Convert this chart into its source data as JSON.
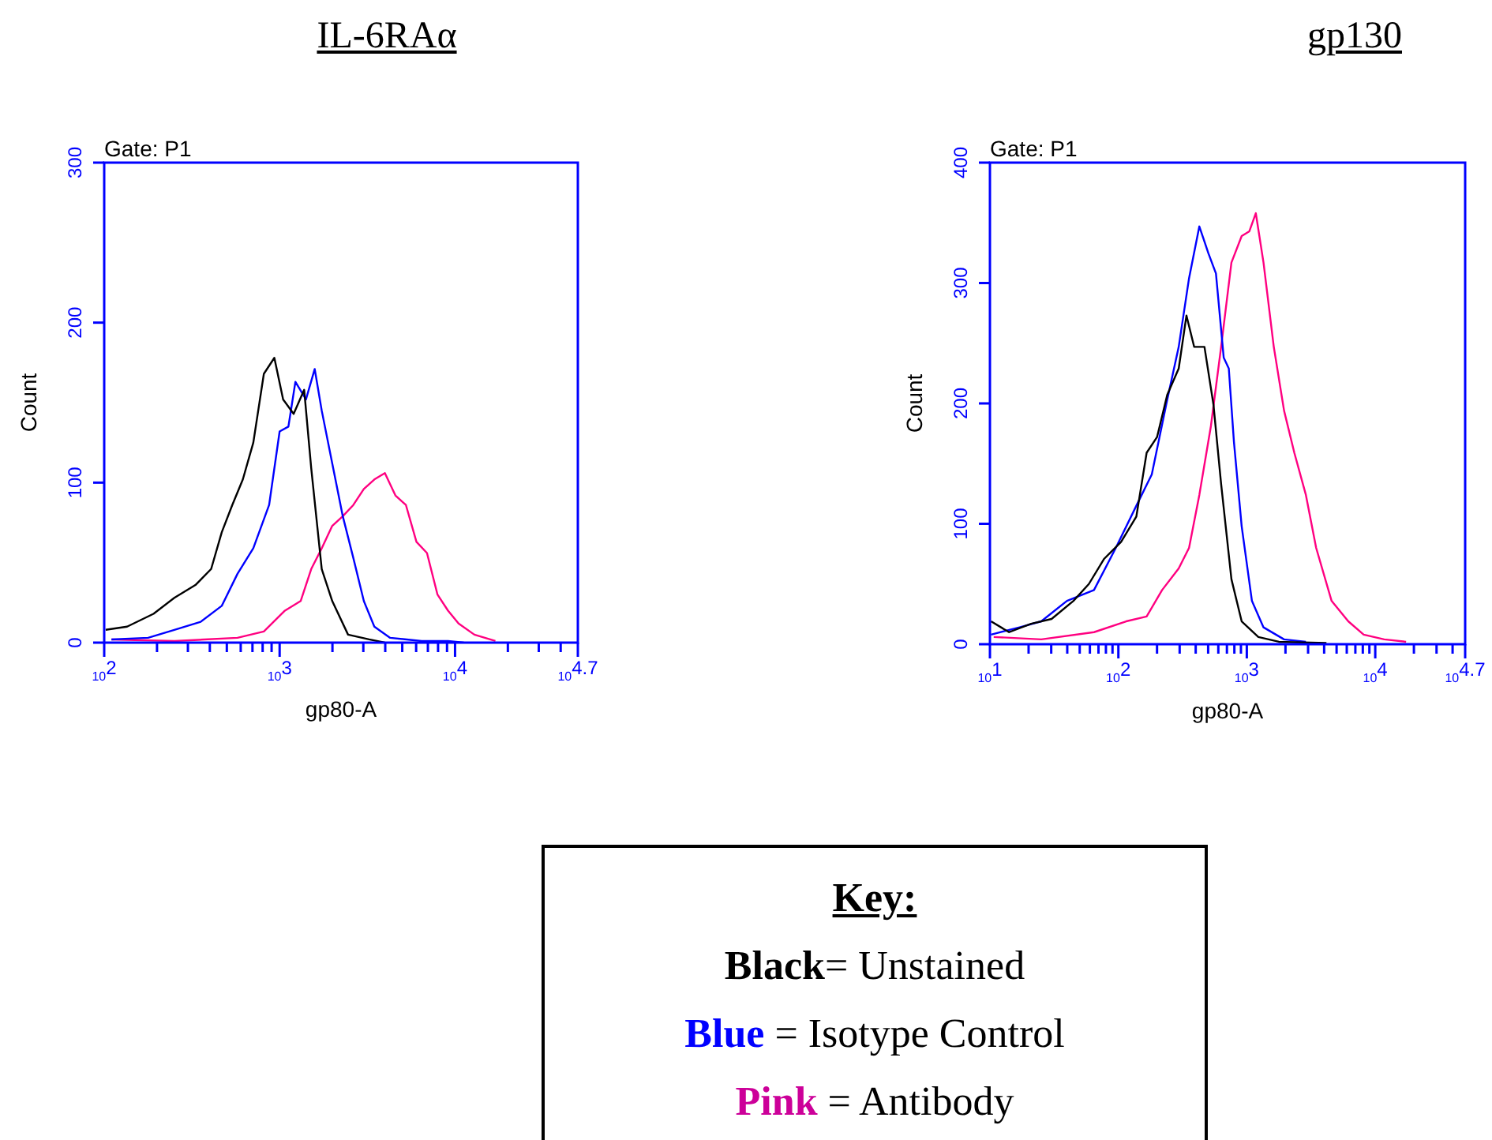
{
  "chart_data": [
    {
      "type": "line",
      "title": "IL-6RAα",
      "subtitle": "Gate: P1",
      "xlabel": "gp80-A",
      "ylabel": "Count",
      "log": "x",
      "marker": "none",
      "xlim": [
        100,
        50119
      ],
      "ylim": [
        0,
        300
      ],
      "xticks": [
        {
          "value": 100,
          "label": "10$^{2}$"
        },
        {
          "value": 200,
          "label": null
        },
        {
          "value": 300,
          "label": null
        },
        {
          "value": 400,
          "label": null
        },
        {
          "value": 500,
          "label": null
        },
        {
          "value": 600,
          "label": null
        },
        {
          "value": 700,
          "label": null
        },
        {
          "value": 800,
          "label": null
        },
        {
          "value": 900,
          "label": null
        },
        {
          "value": 1000,
          "label": "10$^{3}$"
        },
        {
          "value": 2000,
          "label": null
        },
        {
          "value": 3000,
          "label": null
        },
        {
          "value": 4000,
          "label": null
        },
        {
          "value": 5000,
          "label": null
        },
        {
          "value": 6000,
          "label": null
        },
        {
          "value": 7000,
          "label": null
        },
        {
          "value": 8000,
          "label": null
        },
        {
          "value": 9000,
          "label": null
        },
        {
          "value": 10000,
          "label": "10$^{4}$"
        },
        {
          "value": 20000,
          "label": null
        },
        {
          "value": 30000,
          "label": null
        },
        {
          "value": 40000,
          "label": null
        },
        {
          "value": 50119,
          "label": "10$^{4.7}$"
        }
      ],
      "yticks": [
        0,
        100,
        200,
        300
      ],
      "series": [
        {
          "color": "#000000",
          "x": [
            102,
            135,
            191,
            251,
            331,
            407,
            468,
            537,
            617,
            708,
            813,
            933,
            1047,
            1202,
            1380,
            1514,
            1738,
            1995,
            2455,
            3236,
            3981
          ],
          "values": [
            8,
            10,
            18,
            28,
            36,
            46,
            69,
            86,
            102,
            125,
            168,
            178,
            152,
            143,
            158,
            109,
            46,
            26,
            5,
            2,
            0
          ]
        },
        {
          "color": "#0000ff",
          "x": [
            110,
            178,
            251,
            355,
            468,
            575,
            708,
            871,
            1000,
            1122,
            1230,
            1413,
            1585,
            1738,
            1995,
            2291,
            2630,
            3020,
            3467,
            4266,
            6457,
            9120,
            11220
          ],
          "values": [
            2,
            3,
            8,
            13,
            23,
            43,
            59,
            86,
            132,
            135,
            163,
            152,
            171,
            145,
            112,
            79,
            53,
            26,
            10,
            3,
            1,
            1,
            0
          ]
        },
        {
          "color": "#ff0080",
          "x": [
            110,
            251,
            575,
            813,
            1072,
            1318,
            1514,
            1738,
            1995,
            2291,
            2630,
            3020,
            3467,
            3981,
            4571,
            5248,
            6026,
            6918,
            7943,
            9120,
            10471,
            12882,
            15849,
            16982
          ],
          "values": [
            2,
            1,
            3,
            7,
            20,
            26,
            46,
            59,
            73,
            79,
            86,
            96,
            102,
            106,
            92,
            86,
            63,
            56,
            30,
            20,
            12,
            5,
            2,
            1
          ]
        }
      ]
    },
    {
      "type": "line",
      "title": "gp130",
      "subtitle": "Gate: P1",
      "xlabel": "gp80-A",
      "ylabel": "Count",
      "log": "x",
      "marker": "none",
      "xlim": [
        10,
        50119
      ],
      "ylim": [
        0,
        400
      ],
      "xticks": [
        {
          "value": 10,
          "label": "10$^{1}$"
        },
        {
          "value": 20,
          "label": null
        },
        {
          "value": 30,
          "label": null
        },
        {
          "value": 40,
          "label": null
        },
        {
          "value": 50,
          "label": null
        },
        {
          "value": 60,
          "label": null
        },
        {
          "value": 70,
          "label": null
        },
        {
          "value": 80,
          "label": null
        },
        {
          "value": 90,
          "label": null
        },
        {
          "value": 100,
          "label": "10$^{2}$"
        },
        {
          "value": 200,
          "label": null
        },
        {
          "value": 300,
          "label": null
        },
        {
          "value": 400,
          "label": null
        },
        {
          "value": 500,
          "label": null
        },
        {
          "value": 600,
          "label": null
        },
        {
          "value": 700,
          "label": null
        },
        {
          "value": 800,
          "label": null
        },
        {
          "value": 900,
          "label": null
        },
        {
          "value": 1000,
          "label": "10$^{3}$"
        },
        {
          "value": 2000,
          "label": null
        },
        {
          "value": 3000,
          "label": null
        },
        {
          "value": 4000,
          "label": null
        },
        {
          "value": 5000,
          "label": null
        },
        {
          "value": 6000,
          "label": null
        },
        {
          "value": 7000,
          "label": null
        },
        {
          "value": 8000,
          "label": null
        },
        {
          "value": 9000,
          "label": null
        },
        {
          "value": 10000,
          "label": "10$^{4}$"
        },
        {
          "value": 20000,
          "label": null
        },
        {
          "value": 30000,
          "label": null
        },
        {
          "value": 40000,
          "label": null
        },
        {
          "value": 50119,
          "label": "10$^{4.7}$"
        }
      ],
      "yticks": [
        0,
        100,
        200,
        300,
        400
      ],
      "series": [
        {
          "color": "#000000",
          "x": [
            10.2,
            14.1,
            20.9,
            30.2,
            44.7,
            58.9,
            77.6,
            105,
            138,
            166,
            200,
            240,
            295,
            339,
            389,
            468,
            550,
            631,
            759,
            912,
            1230,
            1778,
            4169
          ],
          "values": [
            19,
            10,
            17,
            21,
            36,
            50,
            71,
            85,
            106,
            159,
            172,
            207,
            229,
            273,
            247,
            247,
            199,
            133,
            54,
            19,
            6,
            2,
            1
          ]
        },
        {
          "color": "#0000ff",
          "x": [
            10.2,
            17.0,
            25.1,
            39.8,
            64.6,
            95.5,
            138,
            182,
            240,
            295,
            355,
            427,
            501,
            575,
            661,
            724,
            794,
            912,
            1096,
            1349,
            1950,
            2884
          ],
          "values": [
            8,
            14,
            19,
            36,
            45,
            80,
            115,
            141,
            203,
            247,
            304,
            347,
            325,
            308,
            238,
            229,
            168,
            98,
            36,
            14,
            4,
            2
          ]
        },
        {
          "color": "#ff0080",
          "x": [
            10.7,
            25.1,
            64.6,
            115,
            166,
            219,
            295,
            355,
            427,
            525,
            631,
            759,
            912,
            1047,
            1175,
            1349,
            1622,
            1950,
            2344,
            2884,
            3467,
            4571,
            6166,
            8128,
            11749,
            17378
          ],
          "values": [
            6,
            4,
            10,
            19,
            23,
            45,
            63,
            80,
            124,
            181,
            247,
            317,
            339,
            343,
            358,
            317,
            247,
            194,
            159,
            124,
            80,
            36,
            19,
            8,
            4,
            2
          ]
        }
      ]
    },
    {
      "type": "other",
      "legend_title": "Key:",
      "series": [
        {
          "name": "Black= Unstained",
          "color": "#000000"
        },
        {
          "name": "Blue = Isotype Control",
          "color": "#0000ff"
        },
        {
          "name": "Pink = Antibody",
          "color": "#cc0099"
        }
      ]
    }
  ]
}
